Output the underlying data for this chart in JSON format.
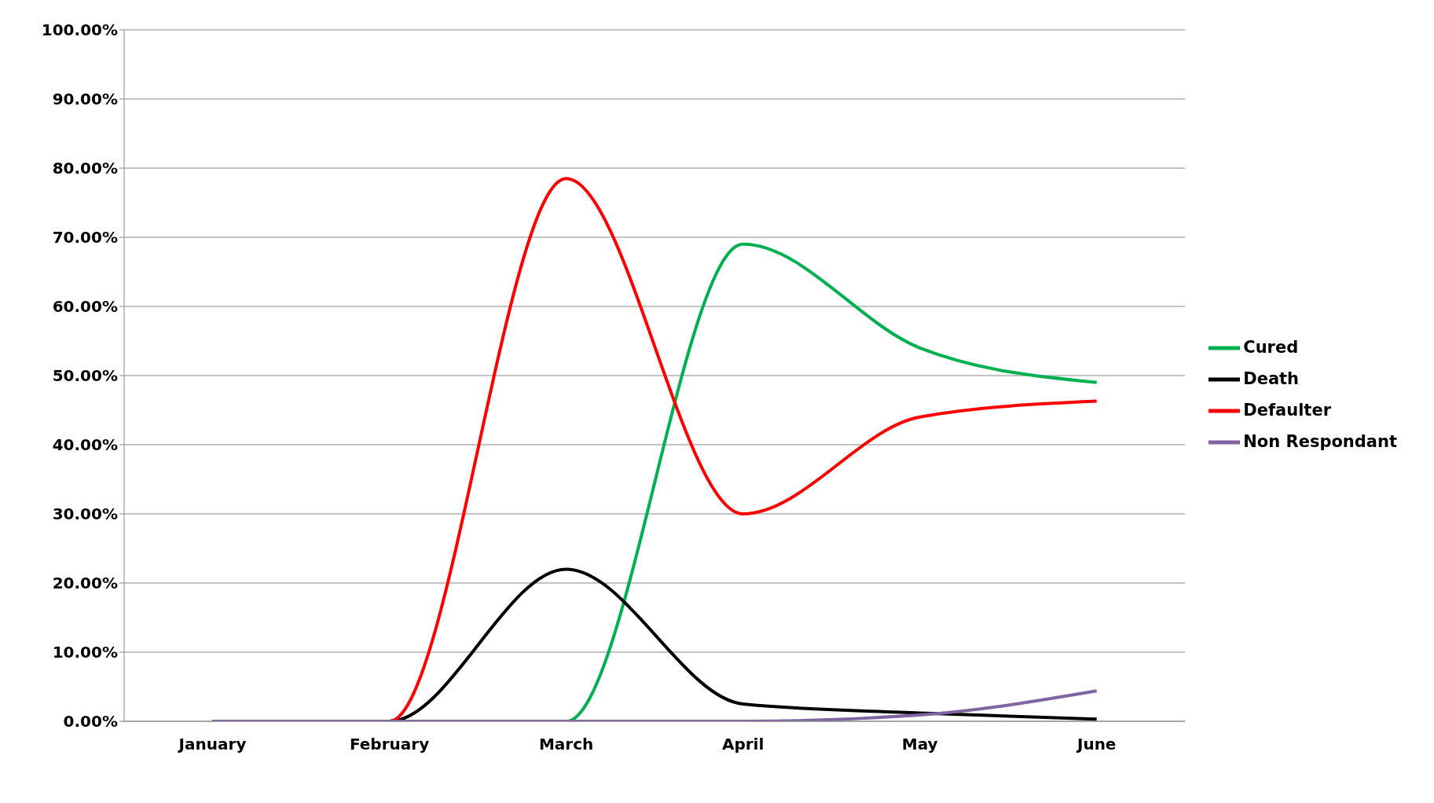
{
  "chart_data": {
    "type": "line",
    "categories": [
      "January",
      "February",
      "March",
      "April",
      "May",
      "June"
    ],
    "series": [
      {
        "name": "Cured",
        "color": "#00b050",
        "values": [
          0,
          0,
          0,
          69,
          54,
          49
        ]
      },
      {
        "name": "Death",
        "color": "#000000",
        "values": [
          0,
          0,
          22,
          2.5,
          1.2,
          0.3
        ]
      },
      {
        "name": "Defaulter",
        "color": "#ff0000",
        "values": [
          0,
          0,
          78.5,
          30,
          44,
          46.3
        ]
      },
      {
        "name": "Non Respondant",
        "color": "#8064a2",
        "values": [
          0,
          0,
          0,
          0,
          0.9,
          4.4
        ]
      }
    ],
    "ylim": [
      0,
      100
    ],
    "yticks": [
      {
        "value": 0,
        "label": "0.00%"
      },
      {
        "value": 10,
        "label": "10.00%"
      },
      {
        "value": 20,
        "label": "20.00%"
      },
      {
        "value": 30,
        "label": "30.00%"
      },
      {
        "value": 40,
        "label": "40.00%"
      },
      {
        "value": 50,
        "label": "50.00%"
      },
      {
        "value": 60,
        "label": "60.00%"
      },
      {
        "value": 70,
        "label": "70.00%"
      },
      {
        "value": 80,
        "label": "80.00%"
      },
      {
        "value": 90,
        "label": "90.00%"
      },
      {
        "value": 100,
        "label": "100.00%"
      }
    ],
    "grid": "y",
    "legend": "right",
    "marker": "none",
    "line_style": "solid"
  }
}
